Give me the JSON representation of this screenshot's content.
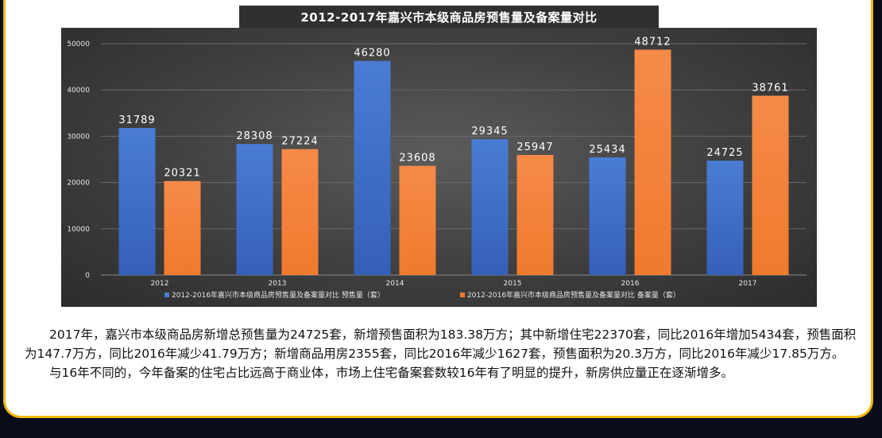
{
  "chart_data": {
    "type": "bar",
    "title": "2012-2017年嘉兴市本级商品房预售量及备案量对比",
    "categories": [
      "2012",
      "2013",
      "2014",
      "2015",
      "2016",
      "2017"
    ],
    "series": [
      {
        "name": "2012-2016年嘉兴市本级商品房预售量及备案量对比 预售量（套）",
        "color": "#4a7cd4",
        "values": [
          31789,
          28308,
          46280,
          29345,
          25434,
          24725
        ]
      },
      {
        "name": "2012-2016年嘉兴市本级商品房预售量及备案量对比 备案量（套）",
        "color": "#f07a2e",
        "values": [
          20321,
          27224,
          23608,
          25947,
          48712,
          38761
        ]
      }
    ],
    "yticks": [
      0,
      10000,
      20000,
      30000,
      40000,
      50000
    ],
    "ylim": [
      0,
      50000
    ],
    "xlabel": "",
    "ylabel": "",
    "grid": true,
    "legend": "bottom"
  },
  "article": {
    "paragraphs": [
      "2017年，嘉兴市本级商品房新增总预售量为24725套，新增预售面积为183.38万方；其中新增住宅22370套，同比2016年增加5434套，预售面积为147.7万方，同比2016年减少41.79万方；新增商品用房2355套，同比2016年减少1627套，预售面积为20.3万方，同比2016年减少17.85万方。",
      "与16年不同的，今年备案的住宅占比远高于商业体，市场上住宅备案套数较16年有了明显的提升，新房供应量正在逐渐增多。"
    ]
  }
}
